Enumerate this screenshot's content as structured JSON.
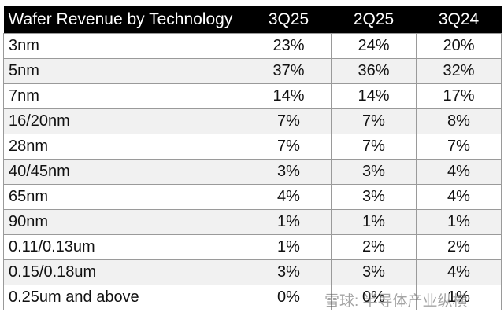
{
  "table": {
    "header": [
      "Wafer Revenue by Technology",
      "3Q25",
      "2Q25",
      "3Q24"
    ],
    "rows": [
      [
        "3nm",
        "23%",
        "24%",
        "20%"
      ],
      [
        "5nm",
        "37%",
        "36%",
        "32%"
      ],
      [
        "7nm",
        "14%",
        "14%",
        "17%"
      ],
      [
        "16/20nm",
        "7%",
        "7%",
        "8%"
      ],
      [
        "28nm",
        "7%",
        "7%",
        "7%"
      ],
      [
        "40/45nm",
        "3%",
        "3%",
        "4%"
      ],
      [
        "65nm",
        "4%",
        "3%",
        "4%"
      ],
      [
        "90nm",
        "1%",
        "1%",
        "1%"
      ],
      [
        "0.11/0.13um",
        "1%",
        "2%",
        "2%"
      ],
      [
        "0.15/0.18um",
        "3%",
        "3%",
        "4%"
      ],
      [
        "0.25um and above",
        "0%",
        "0%",
        "1%"
      ]
    ]
  },
  "watermark": "雪球: 半导体产业纵横"
}
